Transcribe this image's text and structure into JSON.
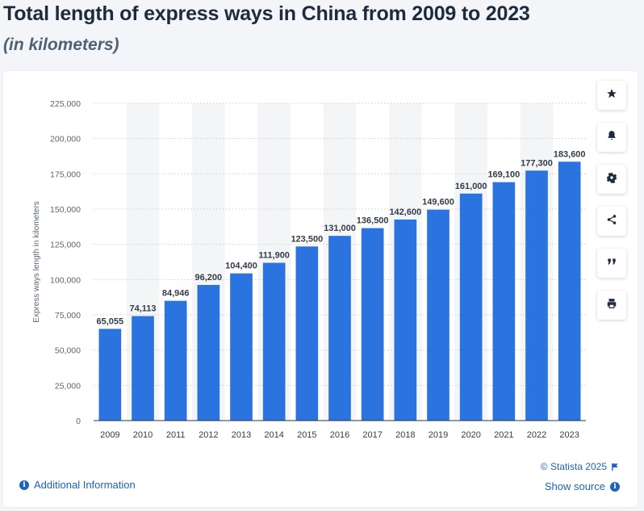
{
  "header": {
    "title": "Total length of express ways in China from 2009 to 2023",
    "subtitle": "(in kilometers)"
  },
  "toolbar": {
    "buttons": [
      {
        "name": "favorite-button",
        "icon": "star-icon"
      },
      {
        "name": "notification-button",
        "icon": "bell-icon"
      },
      {
        "name": "settings-button",
        "icon": "gear-icon"
      },
      {
        "name": "share-button",
        "icon": "share-icon"
      },
      {
        "name": "cite-button",
        "icon": "quote-icon"
      },
      {
        "name": "print-button",
        "icon": "print-icon"
      }
    ]
  },
  "footer": {
    "additional_info": "Additional Information",
    "copyright": "© Statista 2025",
    "show_source": "Show source"
  },
  "colors": {
    "bar": "#2b73de",
    "band": "#f4f5f7",
    "link": "#1e63b8"
  },
  "chart_data": {
    "type": "bar",
    "categories": [
      "2009",
      "2010",
      "2011",
      "2012",
      "2013",
      "2014",
      "2015",
      "2016",
      "2017",
      "2018",
      "2019",
      "2020",
      "2021",
      "2022",
      "2023"
    ],
    "values": [
      65055,
      74113,
      84946,
      96200,
      104400,
      111900,
      123500,
      131000,
      136500,
      142600,
      149600,
      161000,
      169100,
      177300,
      183600
    ],
    "value_labels": [
      "65,055",
      "74,113",
      "84,946",
      "96,200",
      "104,400",
      "111,900",
      "123,500",
      "131,000",
      "136,500",
      "142,600",
      "149,600",
      "161,000",
      "169,100",
      "177,300",
      "183,600"
    ],
    "ylabel": "Express ways length in kilometers",
    "ylim": [
      0,
      225000
    ],
    "yticks": [
      0,
      25000,
      50000,
      75000,
      100000,
      125000,
      150000,
      175000,
      200000,
      225000
    ],
    "ytick_labels": [
      "0",
      "25,000",
      "50,000",
      "75,000",
      "100,000",
      "125,000",
      "150,000",
      "175,000",
      "200,000",
      "225,000"
    ],
    "grid": true
  }
}
